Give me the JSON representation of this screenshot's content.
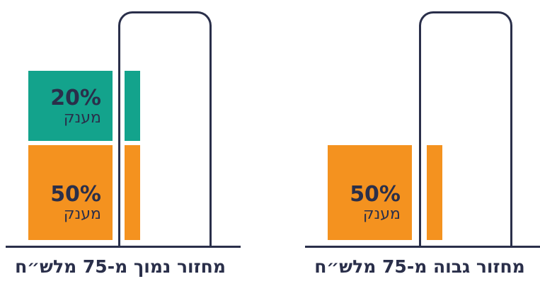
{
  "panels": [
    {
      "caption": "מחזור נמוך מ-75 מלש״ח",
      "blocks": [
        {
          "pct": "20%",
          "word": "מענק",
          "color": "#13a38c"
        },
        {
          "pct": "50%",
          "word": "מענק",
          "color": "#f4921f"
        }
      ]
    },
    {
      "caption": "מחזור גבוה מ-75 מלש״ח",
      "blocks": [
        {
          "pct": "50%",
          "word": "מענק",
          "color": "#f4921f"
        }
      ]
    }
  ],
  "colors": {
    "outline": "#2a2f4a",
    "teal": "#13a38c",
    "orange": "#f4921f"
  }
}
